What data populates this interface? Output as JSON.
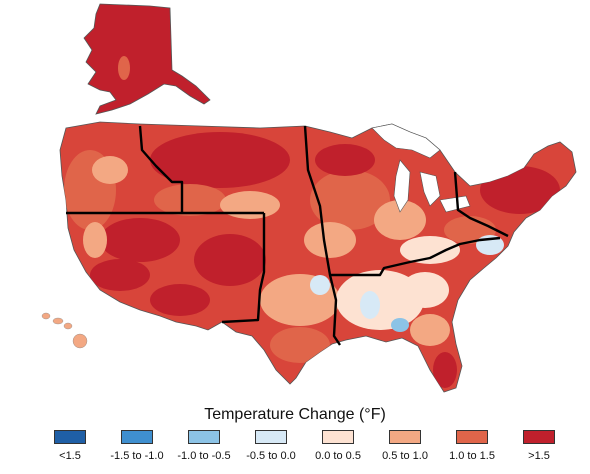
{
  "legend": {
    "title": "Temperature Change (°F)",
    "items": [
      {
        "label": "<1.5",
        "color": "#1f5fa6"
      },
      {
        "label": "-1.5 to -1.0",
        "color": "#3f8fcf"
      },
      {
        "label": "-1.0 to -0.5",
        "color": "#8cc3e6"
      },
      {
        "label": "-0.5 to 0.0",
        "color": "#d7e9f6"
      },
      {
        "label": "0.0 to 0.5",
        "color": "#fde2d2"
      },
      {
        "label": "0.5 to 1.0",
        "color": "#f3a883"
      },
      {
        "label": "1.0 to 1.5",
        "color": "#e0654a"
      },
      {
        "label": ">1.5",
        "color": "#c0202c"
      }
    ]
  }
}
